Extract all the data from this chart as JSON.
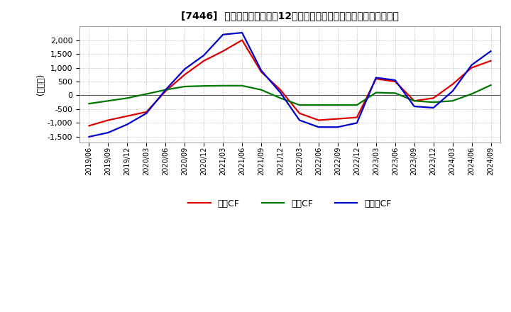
{
  "title": "[7446]  キャッシュフローの12か月移動合計の対前年同期増減額の推移",
  "ylabel": "(百万円)",
  "ylim": [
    -1700,
    2500
  ],
  "yticks": [
    -1500,
    -1000,
    -500,
    0,
    500,
    1000,
    1500,
    2000
  ],
  "legend_labels": [
    "営業CF",
    "投資CF",
    "フリーCF"
  ],
  "line_colors": [
    "#dd0000",
    "#007700",
    "#0000cc"
  ],
  "x_labels": [
    "2019/06",
    "2019/09",
    "2019/12",
    "2020/03",
    "2020/06",
    "2020/09",
    "2020/12",
    "2021/03",
    "2021/06",
    "2021/09",
    "2021/12",
    "2022/03",
    "2022/06",
    "2022/09",
    "2022/12",
    "2023/03",
    "2023/06",
    "2023/09",
    "2023/12",
    "2024/03",
    "2024/06",
    "2024/09"
  ],
  "eigyo_cf": [
    -1100,
    -900,
    -750,
    -600,
    150,
    750,
    1250,
    1600,
    2000,
    850,
    200,
    -650,
    -900,
    -850,
    -800,
    600,
    500,
    -200,
    -100,
    400,
    1000,
    1250
  ],
  "toshi_cf": [
    -300,
    -200,
    -100,
    50,
    200,
    320,
    340,
    350,
    350,
    200,
    -100,
    -350,
    -350,
    -350,
    -350,
    100,
    80,
    -200,
    -250,
    -200,
    50,
    370
  ],
  "free_cf": [
    -1500,
    -1350,
    -1050,
    -650,
    200,
    950,
    1450,
    2200,
    2270,
    900,
    100,
    -900,
    -1150,
    -1150,
    -1000,
    640,
    550,
    -400,
    -450,
    150,
    1100,
    1600
  ],
  "background_color": "#ffffff",
  "grid_color": "#aaaaaa"
}
